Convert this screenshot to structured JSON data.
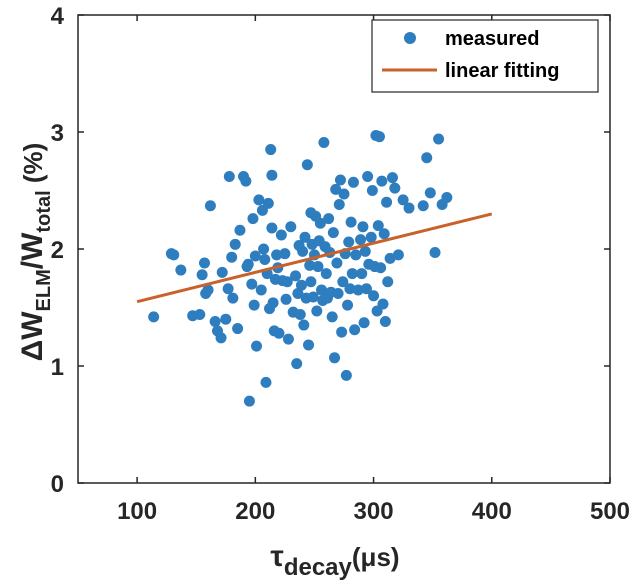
{
  "chart_data": {
    "type": "scatter",
    "title": "",
    "xlabel": {
      "main": "τ",
      "sub": "decay",
      "unit": "(μs)"
    },
    "ylabel": {
      "delta": "ΔW",
      "sub1": "ELM",
      "slash": "/W",
      "sub2": "total",
      "unit": " (%)"
    },
    "xlim": [
      50,
      500
    ],
    "ylim": [
      0,
      4
    ],
    "xticks": [
      "100",
      "200",
      "300",
      "400",
      "500"
    ],
    "yticks": [
      "0",
      "1",
      "2",
      "3",
      "4"
    ],
    "grid": false,
    "legend_position": "top-right",
    "colors": {
      "measured": "#2e7dbf",
      "fit": "#c8612a"
    },
    "series": [
      {
        "name": "measured",
        "kind": "scatter",
        "points": [
          [
            114,
            1.42
          ],
          [
            129,
            1.96
          ],
          [
            131,
            1.95
          ],
          [
            137,
            1.82
          ],
          [
            147,
            1.43
          ],
          [
            153,
            1.44
          ],
          [
            155,
            1.78
          ],
          [
            157,
            1.88
          ],
          [
            158,
            1.62
          ],
          [
            160,
            1.65
          ],
          [
            162,
            2.37
          ],
          [
            166,
            1.38
          ],
          [
            168,
            1.3
          ],
          [
            171,
            1.24
          ],
          [
            172,
            1.8
          ],
          [
            175,
            1.4
          ],
          [
            177,
            1.66
          ],
          [
            178,
            2.62
          ],
          [
            180,
            1.93
          ],
          [
            181,
            1.58
          ],
          [
            183,
            2.04
          ],
          [
            185,
            1.32
          ],
          [
            187,
            2.16
          ],
          [
            190,
            2.62
          ],
          [
            192,
            2.58
          ],
          [
            193,
            1.85
          ],
          [
            194,
            1.87
          ],
          [
            195,
            0.7
          ],
          [
            197,
            1.7
          ],
          [
            198,
            2.26
          ],
          [
            199,
            1.52
          ],
          [
            200,
            1.94
          ],
          [
            201,
            1.17
          ],
          [
            203,
            2.42
          ],
          [
            205,
            1.65
          ],
          [
            206,
            2.33
          ],
          [
            207,
            2.0
          ],
          [
            208,
            1.91
          ],
          [
            209,
            0.86
          ],
          [
            210,
            1.79
          ],
          [
            211,
            2.39
          ],
          [
            212,
            1.49
          ],
          [
            213,
            2.85
          ],
          [
            214,
            2.63
          ],
          [
            214,
            2.18
          ],
          [
            215,
            1.54
          ],
          [
            216,
            1.3
          ],
          [
            217,
            1.74
          ],
          [
            218,
            1.95
          ],
          [
            219,
            1.84
          ],
          [
            220,
            1.28
          ],
          [
            222,
            2.12
          ],
          [
            223,
            1.73
          ],
          [
            225,
            1.96
          ],
          [
            226,
            1.57
          ],
          [
            227,
            1.72
          ],
          [
            228,
            1.23
          ],
          [
            230,
            2.19
          ],
          [
            232,
            1.46
          ],
          [
            234,
            1.77
          ],
          [
            235,
            1.02
          ],
          [
            236,
            1.62
          ],
          [
            237,
            2.03
          ],
          [
            238,
            1.44
          ],
          [
            239,
            1.69
          ],
          [
            240,
            1.98
          ],
          [
            241,
            1.35
          ],
          [
            242,
            2.1
          ],
          [
            243,
            1.58
          ],
          [
            244,
            2.72
          ],
          [
            245,
            1.18
          ],
          [
            246,
            1.86
          ],
          [
            247,
            2.31
          ],
          [
            247,
            1.72
          ],
          [
            248,
            2.04
          ],
          [
            249,
            1.59
          ],
          [
            250,
            1.95
          ],
          [
            251,
            2.28
          ],
          [
            252,
            1.47
          ],
          [
            253,
            1.85
          ],
          [
            254,
            2.07
          ],
          [
            255,
            2.22
          ],
          [
            256,
            1.65
          ],
          [
            257,
            1.56
          ],
          [
            258,
            2.91
          ],
          [
            259,
            2.02
          ],
          [
            260,
            1.79
          ],
          [
            261,
            1.58
          ],
          [
            262,
            2.26
          ],
          [
            263,
            1.97
          ],
          [
            264,
            1.63
          ],
          [
            265,
            1.42
          ],
          [
            266,
            2.14
          ],
          [
            267,
            1.07
          ],
          [
            268,
            2.51
          ],
          [
            269,
            1.88
          ],
          [
            270,
            1.62
          ],
          [
            271,
            2.38
          ],
          [
            272,
            2.59
          ],
          [
            273,
            1.29
          ],
          [
            274,
            1.72
          ],
          [
            275,
            2.47
          ],
          [
            276,
            1.96
          ],
          [
            277,
            0.92
          ],
          [
            278,
            1.52
          ],
          [
            279,
            2.06
          ],
          [
            280,
            1.66
          ],
          [
            281,
            2.23
          ],
          [
            282,
            1.79
          ],
          [
            283,
            2.57
          ],
          [
            284,
            1.31
          ],
          [
            285,
            1.95
          ],
          [
            287,
            1.65
          ],
          [
            289,
            2.08
          ],
          [
            290,
            1.79
          ],
          [
            291,
            2.19
          ],
          [
            292,
            1.37
          ],
          [
            293,
            1.98
          ],
          [
            294,
            1.66
          ],
          [
            295,
            2.62
          ],
          [
            296,
            1.87
          ],
          [
            298,
            2.1
          ],
          [
            299,
            2.5
          ],
          [
            300,
            1.6
          ],
          [
            301,
            1.85
          ],
          [
            302,
            2.97
          ],
          [
            303,
            1.47
          ],
          [
            304,
            2.2
          ],
          [
            305,
            2.96
          ],
          [
            306,
            1.84
          ],
          [
            307,
            2.58
          ],
          [
            308,
            1.53
          ],
          [
            309,
            2.13
          ],
          [
            310,
            1.38
          ],
          [
            311,
            2.4
          ],
          [
            312,
            1.72
          ],
          [
            314,
            1.92
          ],
          [
            316,
            2.61
          ],
          [
            318,
            2.52
          ],
          [
            321,
            1.95
          ],
          [
            325,
            2.42
          ],
          [
            330,
            2.35
          ],
          [
            342,
            2.37
          ],
          [
            345,
            2.78
          ],
          [
            348,
            2.48
          ],
          [
            352,
            1.97
          ],
          [
            355,
            2.94
          ],
          [
            358,
            2.38
          ],
          [
            362,
            2.44
          ]
        ]
      },
      {
        "name": "linear fitting",
        "kind": "line",
        "points": [
          [
            100,
            1.55
          ],
          [
            400,
            2.3
          ]
        ]
      }
    ]
  }
}
